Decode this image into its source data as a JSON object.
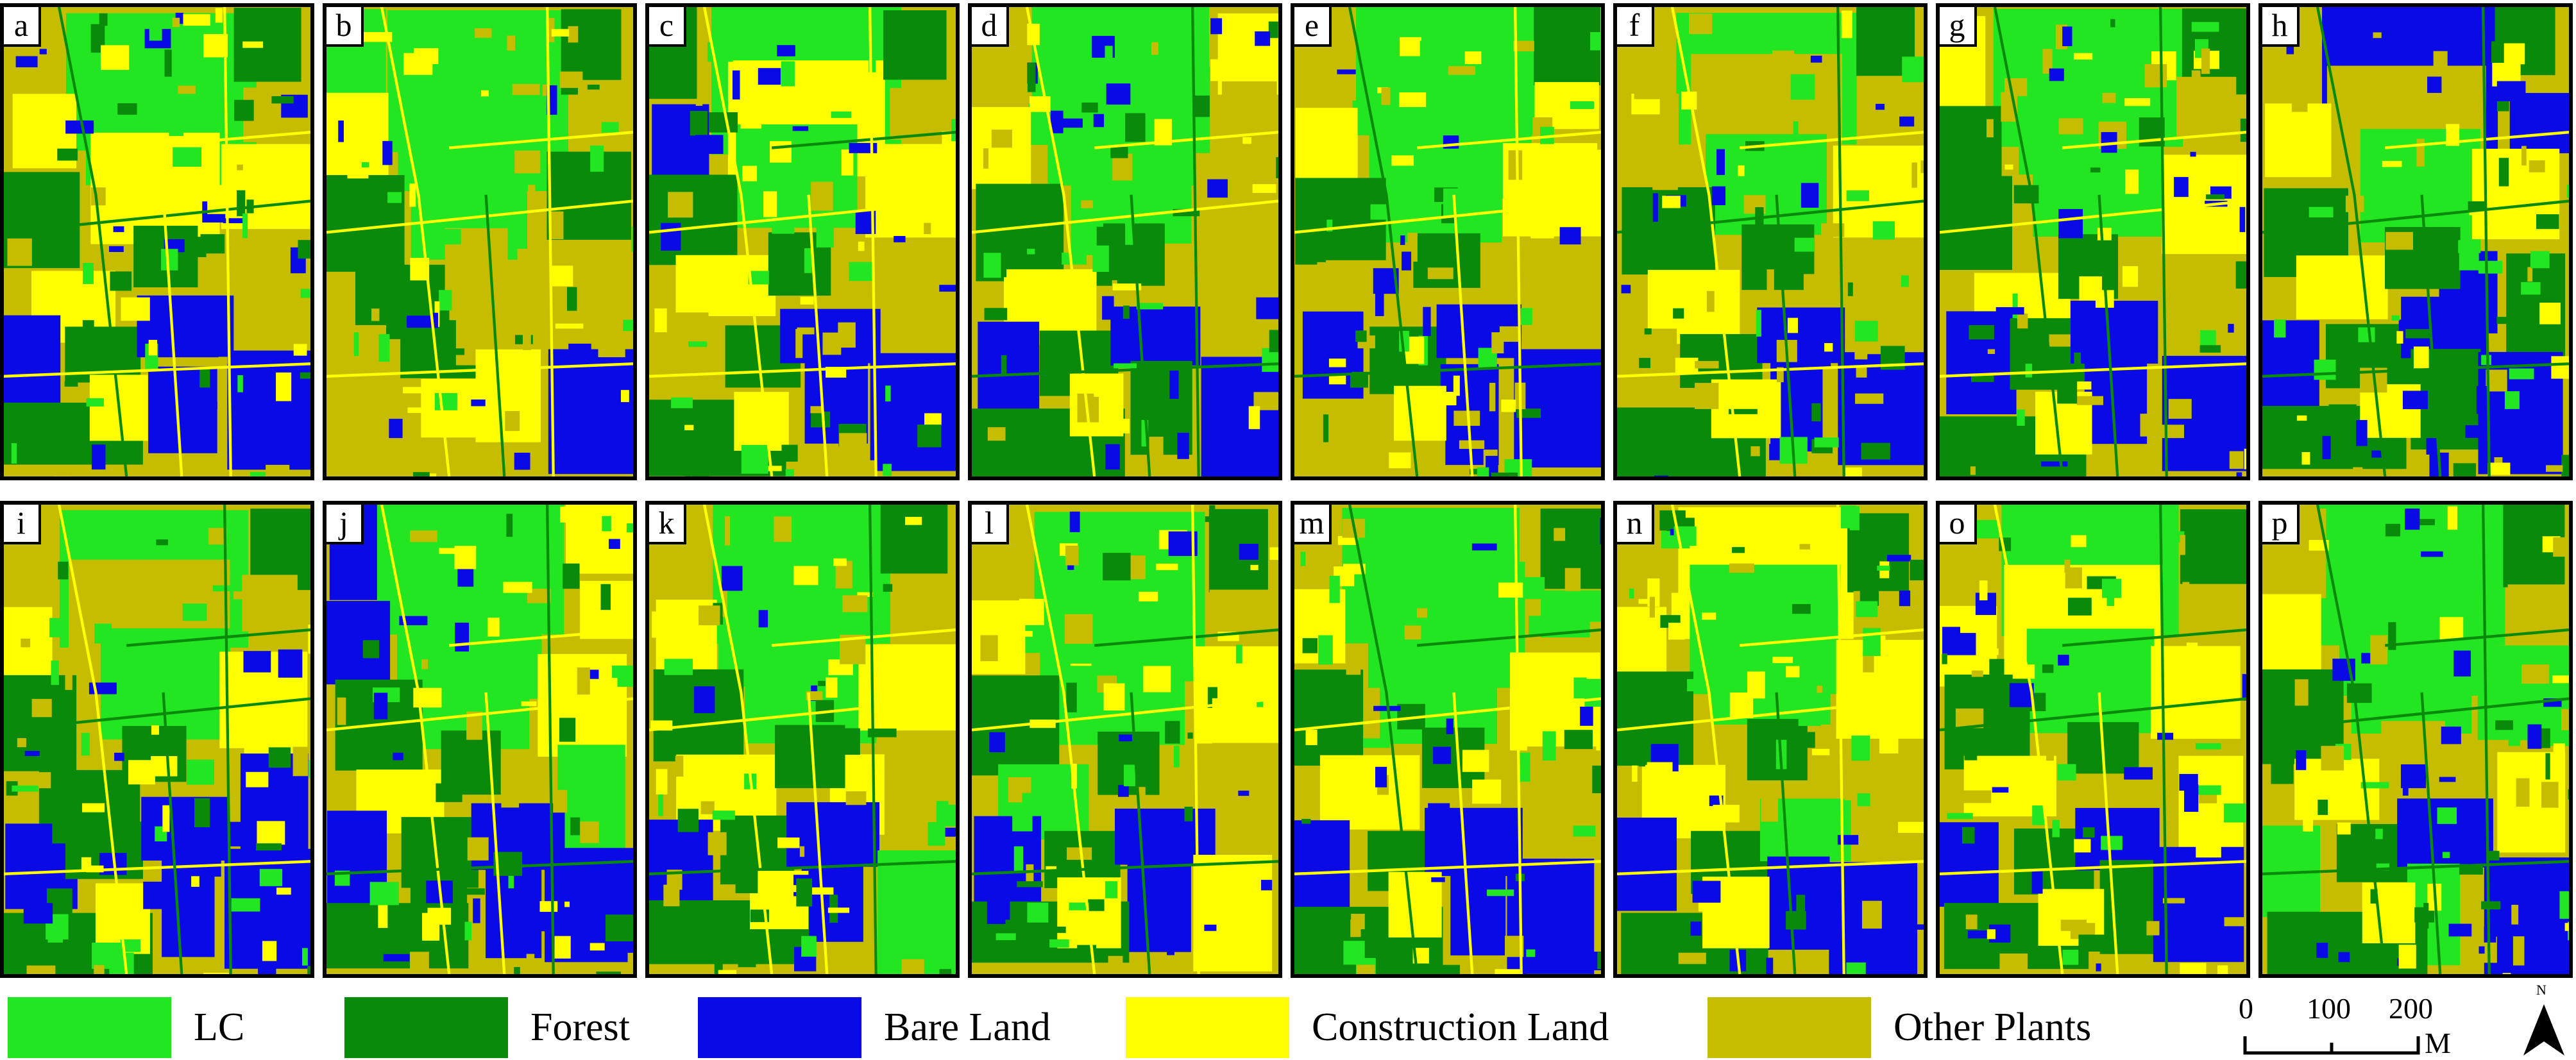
{
  "colors": {
    "lc": "#22e622",
    "forest": "#0a8a0a",
    "bare": "#0a0ae6",
    "construction": "#ffff00",
    "other": "#c7bd00"
  },
  "panels": [
    "a",
    "b",
    "c",
    "d",
    "e",
    "f",
    "g",
    "h",
    "i",
    "j",
    "k",
    "l",
    "m",
    "n",
    "o",
    "p"
  ],
  "legend": [
    {
      "label": "LC",
      "color": "#22e622"
    },
    {
      "label": "Forest",
      "color": "#0a8a0a"
    },
    {
      "label": "Bare Land",
      "color": "#0a0ae6"
    },
    {
      "label": "Construction Land",
      "color": "#ffff00"
    },
    {
      "label": "Other Plants",
      "color": "#c7bd00"
    }
  ],
  "scalebar": {
    "ticks": [
      "0",
      "100",
      "200"
    ],
    "unit": "M"
  },
  "north": {
    "label": "N",
    "icon": "north-arrow-icon"
  }
}
